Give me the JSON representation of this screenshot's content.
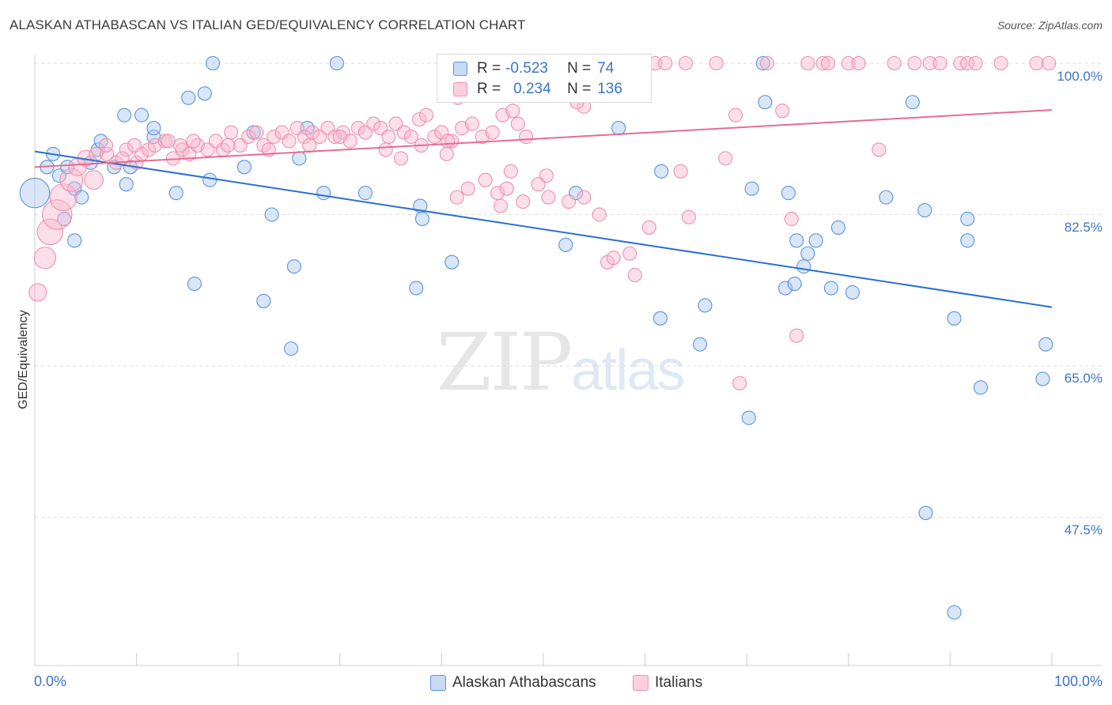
{
  "title": "ALASKAN ATHABASCAN VS ITALIAN GED/EQUIVALENCY CORRELATION CHART",
  "source": "Source: ZipAtlas.com",
  "watermark": {
    "zip": "ZIP",
    "atlas": "atlas"
  },
  "correlation_box": {
    "rows": [
      {
        "r_label": "R =",
        "r_value": "-0.523",
        "n_label": "N =",
        "n_value": "74",
        "color": "#a9c8f0"
      },
      {
        "r_label": "R =",
        "r_value": "0.234",
        "n_label": "N =",
        "n_value": "136",
        "color": "#f8b8cb"
      }
    ]
  },
  "chart_data": {
    "type": "scatter",
    "title": "ALASKAN ATHABASCAN VS ITALIAN GED/EQUIVALENCY CORRELATION CHART",
    "xlabel": "",
    "ylabel": "GED/Equivalency",
    "xlim": [
      0,
      100
    ],
    "ylim": [
      35,
      101
    ],
    "x_tick_labels": [
      "0.0%",
      "100.0%"
    ],
    "y_tick_labels": [
      "100.0%",
      "82.5%",
      "65.0%",
      "47.5%"
    ],
    "y_ticks": [
      100.0,
      82.5,
      65.0,
      47.5
    ],
    "grid": true,
    "legend": "bottom-center",
    "series": [
      {
        "name": "Alaskan Athabascans",
        "color": "#5b93d9",
        "fill": "#a9c8f0",
        "trend": {
          "x0": 0,
          "y0": 89.8,
          "x1": 100,
          "y1": 71.8,
          "color": "#2b6fd0"
        },
        "points": [
          [
            0,
            85,
            2.2
          ],
          [
            1.2,
            88,
            1
          ],
          [
            1.8,
            89.5,
            1
          ],
          [
            2.4,
            87,
            1
          ],
          [
            2.9,
            82,
            1
          ],
          [
            3.9,
            85.5,
            1
          ],
          [
            4.6,
            84.5,
            1
          ],
          [
            5.5,
            88.5,
            1
          ],
          [
            6.2,
            90,
            1
          ],
          [
            6.5,
            91,
            1
          ],
          [
            3.2,
            88,
            1
          ],
          [
            3.9,
            79.5,
            1
          ],
          [
            7.8,
            88,
            1
          ],
          [
            8.8,
            94,
            1
          ],
          [
            9.0,
            86,
            1
          ],
          [
            9.4,
            88,
            1
          ],
          [
            10.5,
            94,
            1
          ],
          [
            11.7,
            91.5,
            1
          ],
          [
            11.7,
            92.5,
            1
          ],
          [
            13.9,
            85,
            1
          ],
          [
            15.1,
            96,
            1
          ],
          [
            16.7,
            96.5,
            1
          ],
          [
            17.2,
            86.5,
            1
          ],
          [
            17.5,
            100,
            1
          ],
          [
            15.7,
            74.5,
            1
          ],
          [
            20.6,
            88,
            1
          ],
          [
            21.5,
            92,
            1
          ],
          [
            22.5,
            72.5,
            1
          ],
          [
            23.3,
            82.5,
            1
          ],
          [
            25.2,
            67,
            1
          ],
          [
            25.5,
            76.5,
            1
          ],
          [
            26.0,
            89,
            1
          ],
          [
            26.8,
            92.5,
            1
          ],
          [
            28.4,
            85,
            1
          ],
          [
            29.7,
            100,
            1
          ],
          [
            32.5,
            85,
            1
          ],
          [
            37.5,
            74,
            1
          ],
          [
            37.9,
            83.5,
            1
          ],
          [
            38.1,
            82,
            1
          ],
          [
            41.0,
            77,
            1
          ],
          [
            52.2,
            79,
            1
          ],
          [
            53.2,
            85,
            1
          ],
          [
            57.4,
            92.5,
            1
          ],
          [
            61.5,
            70.5,
            1
          ],
          [
            61.6,
            87.5,
            1
          ],
          [
            65.4,
            67.5,
            1
          ],
          [
            65.9,
            72,
            1
          ],
          [
            70.2,
            59,
            1
          ],
          [
            70.5,
            85.5,
            1
          ],
          [
            71.6,
            100,
            1
          ],
          [
            71.8,
            95.5,
            1
          ],
          [
            73.8,
            74,
            1
          ],
          [
            74.1,
            85,
            1
          ],
          [
            74.7,
            74.5,
            1
          ],
          [
            74.9,
            79.5,
            1
          ],
          [
            75.6,
            76.5,
            1
          ],
          [
            76.0,
            78,
            1
          ],
          [
            76.8,
            79.5,
            1
          ],
          [
            78.3,
            74,
            1
          ],
          [
            79.0,
            81,
            1
          ],
          [
            80.4,
            73.5,
            1
          ],
          [
            83.7,
            84.5,
            1
          ],
          [
            86.3,
            95.5,
            1
          ],
          [
            87.5,
            83,
            1
          ],
          [
            87.6,
            48,
            1
          ],
          [
            90.4,
            70.5,
            1
          ],
          [
            90.4,
            36.5,
            1
          ],
          [
            91.7,
            82,
            1
          ],
          [
            91.7,
            79.5,
            1
          ],
          [
            93.0,
            62.5,
            1
          ],
          [
            99.1,
            63.5,
            1
          ],
          [
            99.4,
            67.5,
            1
          ]
        ]
      },
      {
        "name": "Italians",
        "color": "#ee8fae",
        "fill": "#f8b8cb",
        "trend": {
          "x0": 0,
          "y0": 88.0,
          "x1": 100,
          "y1": 94.6,
          "color": "#e56c94"
        },
        "points": [
          [
            0.3,
            73.5,
            1.3
          ],
          [
            1.0,
            77.5,
            1.6
          ],
          [
            1.5,
            80.5,
            1.9
          ],
          [
            2.2,
            82.5,
            2.2
          ],
          [
            2.8,
            84.5,
            2
          ],
          [
            3.6,
            86.5,
            1.7
          ],
          [
            4.2,
            88,
            1.3
          ],
          [
            5.0,
            89,
            1.2
          ],
          [
            6.0,
            89.5,
            1
          ],
          [
            7.1,
            89.5,
            1
          ],
          [
            5.8,
            86.5,
            1.4
          ],
          [
            8.0,
            88.5,
            1
          ],
          [
            9.0,
            90,
            1
          ],
          [
            10.0,
            88.5,
            1
          ],
          [
            10.5,
            89.5,
            1
          ],
          [
            11.2,
            90,
            1
          ],
          [
            11.8,
            90.5,
            1
          ],
          [
            12.8,
            91,
            1
          ],
          [
            13.6,
            89,
            1
          ],
          [
            14.5,
            90,
            1
          ],
          [
            15.2,
            89.5,
            1
          ],
          [
            16.0,
            90.5,
            1
          ],
          [
            17.0,
            90,
            1
          ],
          [
            17.8,
            91,
            1
          ],
          [
            18.5,
            90,
            1
          ],
          [
            19.3,
            92,
            1
          ],
          [
            20.2,
            90.5,
            1
          ],
          [
            21.0,
            91.5,
            1
          ],
          [
            21.8,
            92,
            1
          ],
          [
            22.5,
            90.5,
            1
          ],
          [
            23.5,
            91.5,
            1
          ],
          [
            24.3,
            92,
            1
          ],
          [
            25.0,
            91,
            1
          ],
          [
            25.8,
            92.5,
            1
          ],
          [
            26.5,
            91.5,
            1
          ],
          [
            27.3,
            92,
            1
          ],
          [
            28.0,
            91.5,
            1
          ],
          [
            28.8,
            92.5,
            1
          ],
          [
            29.5,
            91.5,
            1
          ],
          [
            30.3,
            92,
            1
          ],
          [
            31.0,
            91,
            1
          ],
          [
            31.8,
            92.5,
            1
          ],
          [
            32.5,
            92,
            1
          ],
          [
            33.3,
            93,
            1
          ],
          [
            34.0,
            92.5,
            1
          ],
          [
            34.8,
            91.5,
            1
          ],
          [
            35.5,
            93,
            1
          ],
          [
            36.3,
            92,
            1
          ],
          [
            37.0,
            91.5,
            1
          ],
          [
            37.8,
            93.5,
            1
          ],
          [
            38.5,
            94,
            1
          ],
          [
            39.3,
            91.5,
            1
          ],
          [
            40.0,
            92,
            1
          ],
          [
            41.0,
            91,
            1
          ],
          [
            42.0,
            92.5,
            1
          ],
          [
            43.0,
            93,
            1
          ],
          [
            44.0,
            91.5,
            1
          ],
          [
            45.0,
            92,
            1
          ],
          [
            30.0,
            91.5,
            1
          ],
          [
            36.0,
            89,
            1
          ],
          [
            40.5,
            89.5,
            1
          ],
          [
            41.6,
            96,
            1
          ],
          [
            41.5,
            84.5,
            1
          ],
          [
            40.6,
            91,
            1
          ],
          [
            42.6,
            85.5,
            1
          ],
          [
            44.3,
            86.5,
            1
          ],
          [
            45.5,
            85,
            1
          ],
          [
            45.8,
            83.5,
            1
          ],
          [
            46.4,
            85.5,
            1
          ],
          [
            46.8,
            87.5,
            1
          ],
          [
            48.0,
            84,
            1
          ],
          [
            48.3,
            91.5,
            1
          ],
          [
            49.0,
            96.5,
            1
          ],
          [
            50.0,
            97.5,
            1
          ],
          [
            50.3,
            87,
            1
          ],
          [
            51.1,
            100,
            1
          ],
          [
            53.0,
            100,
            1
          ],
          [
            54.0,
            95,
            1
          ],
          [
            54.0,
            84.5,
            1
          ],
          [
            55.5,
            82.5,
            1
          ],
          [
            56.3,
            77,
            1
          ],
          [
            57.0,
            100,
            1
          ],
          [
            58.5,
            78,
            1
          ],
          [
            60.4,
            81,
            1
          ],
          [
            61.0,
            100,
            1
          ],
          [
            62.0,
            100,
            1
          ],
          [
            63.5,
            87.5,
            1
          ],
          [
            64.0,
            100,
            1
          ],
          [
            67.0,
            100,
            1
          ],
          [
            67.9,
            89,
            1
          ],
          [
            68.9,
            94,
            1
          ],
          [
            69.3,
            63,
            1
          ],
          [
            72.0,
            100,
            1
          ],
          [
            73.5,
            94.5,
            1
          ],
          [
            74.4,
            82,
            1
          ],
          [
            74.9,
            68.5,
            1
          ],
          [
            76.0,
            100,
            1
          ],
          [
            77.5,
            100,
            1
          ],
          [
            78.0,
            100,
            1
          ],
          [
            80.0,
            100,
            1
          ],
          [
            81.0,
            100,
            1
          ],
          [
            83.0,
            90,
            1
          ],
          [
            84.5,
            100,
            1
          ],
          [
            86.5,
            100,
            1
          ],
          [
            88.0,
            100,
            1
          ],
          [
            89.0,
            100,
            1
          ],
          [
            91.0,
            100,
            1
          ],
          [
            91.7,
            100,
            1
          ],
          [
            92.5,
            100,
            1
          ],
          [
            95.0,
            100,
            1
          ],
          [
            98.5,
            100,
            1
          ],
          [
            99.7,
            100,
            1
          ],
          [
            59.0,
            75.5,
            1
          ],
          [
            56.9,
            77.5,
            1
          ],
          [
            64.3,
            82.2,
            1
          ],
          [
            49.5,
            86,
            1
          ],
          [
            50.5,
            84.5,
            1
          ],
          [
            52.5,
            84,
            1
          ],
          [
            53.3,
            95.5,
            1
          ],
          [
            46.0,
            94,
            1
          ],
          [
            47.0,
            94.5,
            1
          ],
          [
            47.5,
            93,
            1
          ],
          [
            38.0,
            90.5,
            1
          ],
          [
            34.5,
            90,
            1
          ],
          [
            27.0,
            90.5,
            1
          ],
          [
            23.0,
            90,
            1
          ],
          [
            19.0,
            90.5,
            1
          ],
          [
            15.6,
            91,
            1
          ],
          [
            14.3,
            90.5,
            1
          ],
          [
            13.1,
            91,
            1
          ],
          [
            9.8,
            90.5,
            1
          ],
          [
            8.6,
            89,
            1
          ],
          [
            7.0,
            90.5,
            1
          ]
        ]
      }
    ]
  }
}
